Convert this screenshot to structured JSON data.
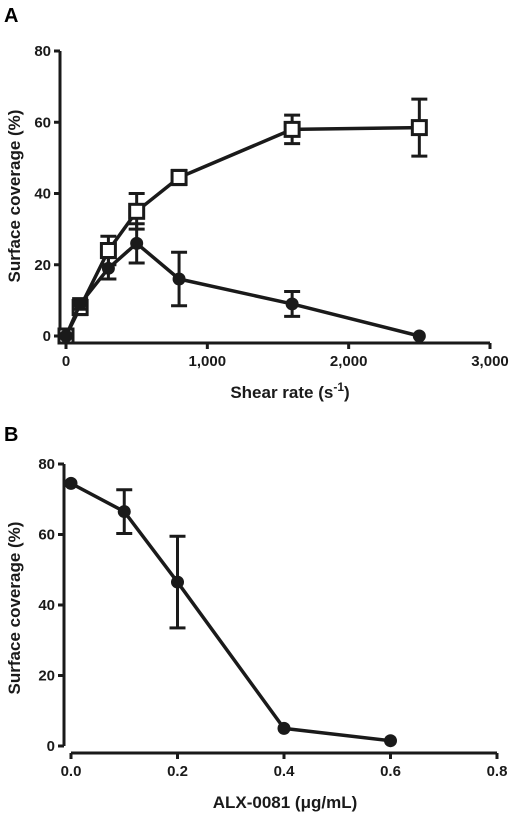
{
  "chart_data": [
    {
      "type": "line",
      "panel": "A",
      "xlabel": "Shear rate (s",
      "xlabel_sup": "-1",
      "xlabel_close": ")",
      "ylabel": "Surface coverage (%)",
      "xlim": [
        0,
        3000
      ],
      "ylim": [
        0,
        80
      ],
      "xticks": [
        0,
        1000,
        2000,
        3000
      ],
      "xtick_labels": [
        "0",
        "1,000",
        "2,000",
        "3,000"
      ],
      "yticks": [
        0,
        20,
        40,
        60,
        80
      ],
      "ytick_labels": [
        "0",
        "20",
        "40",
        "60",
        "80"
      ],
      "grid": false,
      "series": [
        {
          "marker": "open-square",
          "color": "#1a1a1a",
          "x": [
            0,
            100,
            300,
            500,
            800,
            1600,
            2500
          ],
          "y": [
            0,
            8,
            24,
            35,
            44.5,
            58,
            58.5
          ],
          "err": [
            0,
            2,
            4,
            5,
            2,
            4,
            8
          ]
        },
        {
          "marker": "filled-circle",
          "color": "#1a1a1a",
          "x": [
            0,
            100,
            300,
            500,
            800,
            1600,
            2500
          ],
          "y": [
            0,
            9,
            19,
            26,
            16,
            9,
            0
          ],
          "err": [
            0,
            1.5,
            3,
            5.5,
            7.5,
            3.5,
            0
          ]
        }
      ]
    },
    {
      "type": "line",
      "panel": "B",
      "xlabel": "ALX-0081 (μg/mL)",
      "ylabel": "Surface coverage (%)",
      "xlim": [
        0,
        0.8
      ],
      "ylim": [
        0,
        80
      ],
      "xticks": [
        0,
        0.2,
        0.4,
        0.6,
        0.8
      ],
      "xtick_labels": [
        "0.0",
        "0.2",
        "0.4",
        "0.6",
        "0.8"
      ],
      "yticks": [
        0,
        20,
        40,
        60,
        80
      ],
      "ytick_labels": [
        "0",
        "20",
        "40",
        "60",
        "80"
      ],
      "grid": false,
      "series": [
        {
          "marker": "filled-circle",
          "color": "#1a1a1a",
          "x": [
            0,
            0.1,
            0.2,
            0.4,
            0.6
          ],
          "y": [
            74.5,
            66.5,
            46.5,
            5,
            1.5
          ],
          "err": [
            0,
            6.2,
            13,
            0,
            0
          ]
        }
      ]
    }
  ]
}
